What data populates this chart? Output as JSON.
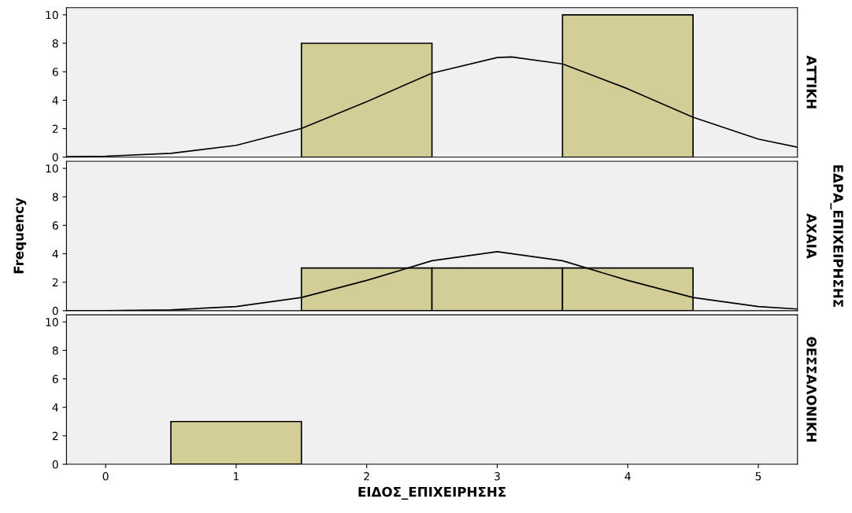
{
  "chart_data": [
    {
      "type": "histogram",
      "y2label": "ΑΤΤΙΚΗ",
      "bins": [
        1.5,
        2.5,
        3.5,
        4.5
      ],
      "values": [
        8,
        0,
        10
      ],
      "color": "#d3ce97",
      "series": [
        {
          "type": "line",
          "color": "#000000",
          "x": [
            -0.3,
            0,
            0.5,
            1,
            1.5,
            2,
            2.5,
            3,
            3.11,
            3.5,
            4,
            4.5,
            5,
            5.3
          ],
          "values": [
            0.03,
            0.07,
            0.27,
            0.83,
            2.02,
            3.9,
            5.9,
            7.0,
            7.04,
            6.55,
            4.8,
            2.8,
            1.27,
            0.7
          ]
        }
      ],
      "xlim": [
        -0.3,
        5.3
      ],
      "ylim": [
        0,
        10.5
      ],
      "yticks": [
        0,
        2,
        4,
        6,
        8,
        10
      ],
      "tick_labels": "y",
      "grid": false
    },
    {
      "type": "histogram",
      "y2label": "ΑΧΑΙΑ",
      "ylabel": "Frequency",
      "annotations": [
        "ΕΔΡΑ_ΕΠΙΧΕΙΡΗΣΗΣ"
      ],
      "bins": [
        1.5,
        2.5,
        3.5,
        4.5
      ],
      "values": [
        3,
        3,
        3
      ],
      "color": "#d3ce97",
      "series": [
        {
          "type": "line",
          "color": "#000000",
          "x": [
            -0.3,
            0,
            0.5,
            1,
            1.5,
            2,
            2.5,
            3,
            3.5,
            4,
            4.5,
            5,
            5.3
          ],
          "values": [
            0.0,
            0.01,
            0.06,
            0.29,
            0.93,
            2.13,
            3.51,
            4.15,
            3.51,
            2.13,
            0.93,
            0.29,
            0.12
          ]
        }
      ],
      "xlim": [
        -0.3,
        5.3
      ],
      "ylim": [
        0,
        10.5
      ],
      "yticks": [
        0,
        2,
        4,
        6,
        8,
        10
      ],
      "tick_labels": "y",
      "grid": false
    },
    {
      "type": "histogram",
      "y2label": "ΘΕΣΣΑΛΟΝΙΚΗ",
      "xlabel": "ΕΙΔΟΣ_ΕΠΙΧΕΙΡΗΣΗΣ",
      "bins": [
        0.5,
        1.5
      ],
      "values": [
        3
      ],
      "color": "#d3ce97",
      "xlim": [
        -0.3,
        5.3
      ],
      "xticks": [
        0,
        1,
        2,
        3,
        4,
        5
      ],
      "ylim": [
        0,
        10.5
      ],
      "yticks": [
        0,
        2,
        4,
        6,
        8,
        10
      ],
      "grid": false
    }
  ]
}
